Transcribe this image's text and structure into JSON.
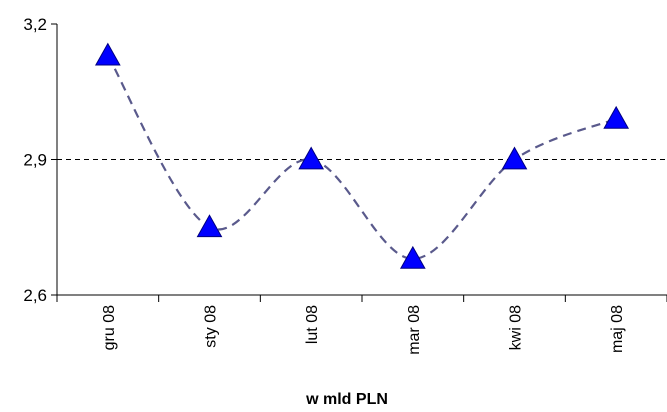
{
  "chart_data": {
    "type": "line",
    "title": "",
    "xlabel": "w mld PLN",
    "ylabel": "",
    "categories": [
      "gru 08",
      "sty 08",
      "lut 08",
      "mar 08",
      "kwi 08",
      "maj 08"
    ],
    "series": [
      {
        "values": [
          3.13,
          2.75,
          2.9,
          2.68,
          2.9,
          2.99
        ]
      }
    ],
    "ylim": [
      2.6,
      3.2
    ],
    "yticks": [
      2.6,
      2.9,
      3.2
    ],
    "ytick_labels": [
      "2,6",
      "2,9",
      "3,2"
    ],
    "reference_line": 2.9,
    "line_style": "dashed smooth",
    "line_color": "#5a5a8c",
    "marker": "triangle",
    "marker_color": "#0000ff",
    "grid": false,
    "legend": "none"
  }
}
